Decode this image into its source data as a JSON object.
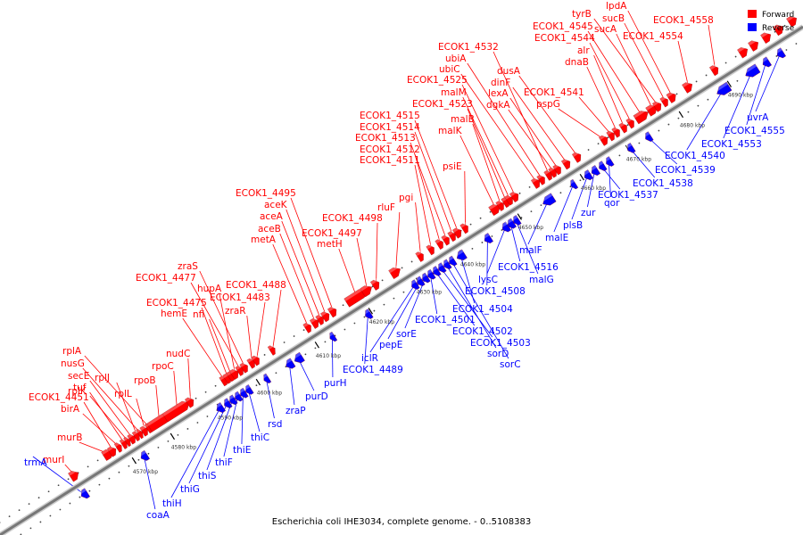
{
  "title": "Escherichia coli IHE3034, complete genome. - 0..5108383",
  "legend": {
    "position": "top-right",
    "items": [
      {
        "label": "Forward",
        "color": "#ff0000"
      },
      {
        "label": "Reverse",
        "color": "#0000ff"
      }
    ]
  },
  "colors": {
    "forward": "#ff0000",
    "reverse": "#0000ff",
    "backbone": "#777777"
  },
  "ticks": [
    "4570 kbp",
    "4580 kbp",
    "4590 kbp",
    "4600 kbp",
    "4610 kbp",
    "4620 kbp",
    "4630 kbp",
    "4640 kbp",
    "4650 kbp",
    "4660 kbp",
    "4670 kbp",
    "4680 kbp",
    "4690 kbp"
  ],
  "forward_genes": [
    "murI",
    "murB",
    "ECOK1_4451",
    "birA",
    "tuf",
    "rplK",
    "secE",
    "rplJ",
    "nusG",
    "rplL",
    "rplA",
    "rpoB",
    "rpoC",
    "nudC",
    "hemE",
    "ECOK1_4475",
    "nfi",
    "hupA",
    "ECOK1_4477",
    "zraS",
    "zraR",
    "ECOK1_4483",
    "ECOK1_4488",
    "metA",
    "aceB",
    "aceA",
    "aceK",
    "ECOK1_4495",
    "metH",
    "ECOK1_4497",
    "ECOK1_4498",
    "rluF",
    "pgi",
    "ECOK1_4511",
    "ECOK1_4512",
    "ECOK1_4513",
    "ECOK1_4514",
    "ECOK1_4515",
    "psiE",
    "malK",
    "malB",
    "ECOK1_4523",
    "malM",
    "ECOK1_4525",
    "ubiC",
    "ubiA",
    "ECOK1_4532",
    "dgkA",
    "lexA",
    "dinF",
    "dusA",
    "pspG",
    "ECOK1_4541",
    "dnaB",
    "alr",
    "ECOK1_4544",
    "ECOK1_4545",
    "sucA",
    "tyrB",
    "sucB",
    "lpdA",
    "ECOK1_4554",
    "ECOK1_4558"
  ],
  "reverse_genes": [
    "trmA",
    "coaA",
    "thiH",
    "thiG",
    "thiS",
    "thiF",
    "thiE",
    "thiC",
    "rsd",
    "zraP",
    "purD",
    "purH",
    "ECOK1_4489",
    "iclR",
    "pepE",
    "sorE",
    "ECOK1_4501",
    "ECOK1_4502",
    "ECOK1_4503",
    "sorD",
    "sorC",
    "ECOK1_4504",
    "ECOK1_4508",
    "lysC",
    "ECOK1_4516",
    "malG",
    "malF",
    "malE",
    "plsB",
    "zur",
    "ECOK1_4537",
    "qor",
    "ECOK1_4538",
    "ECOK1_4539",
    "ECOK1_4540",
    "ECOK1_4553",
    "ECOK1_4555",
    "uvrA"
  ]
}
